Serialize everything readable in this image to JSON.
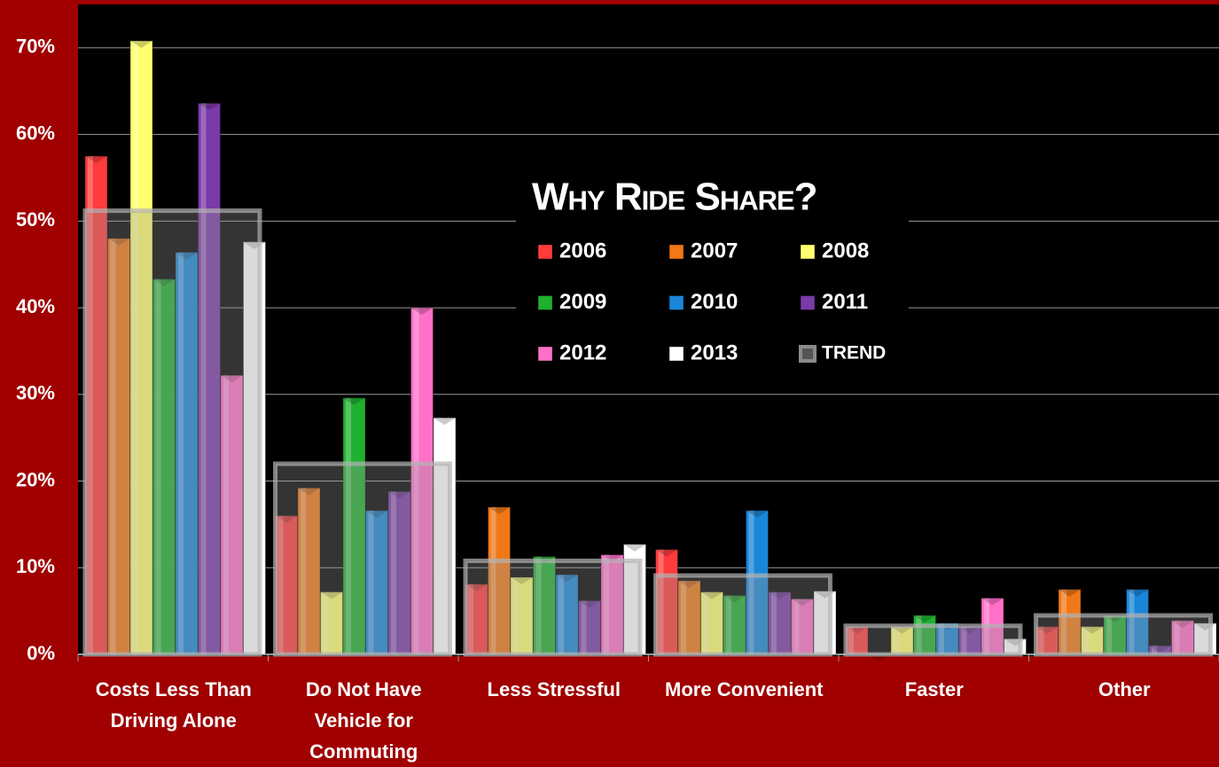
{
  "chart_data": {
    "type": "bar",
    "title": "Why Ride Share?",
    "categories": [
      "Costs Less Than Driving Alone",
      "Do Not Have Vehicle for Commuting",
      "Less Stressful",
      "More Convenient",
      "Faster",
      "Other"
    ],
    "series": [
      {
        "name": "2006",
        "color": "#ff3b3b",
        "values": [
          57.5,
          16,
          8.1,
          12.1,
          3.2,
          3.2
        ]
      },
      {
        "name": "2007",
        "color": "#f07818",
        "values": [
          48,
          19.2,
          17,
          8.5,
          0,
          7.5
        ]
      },
      {
        "name": "2008",
        "color": "#ffff70",
        "values": [
          70.8,
          7.2,
          8.9,
          7.2,
          3.2,
          3.2
        ]
      },
      {
        "name": "2009",
        "color": "#20b030",
        "values": [
          43.3,
          29.6,
          11.3,
          6.8,
          4.5,
          4.5
        ]
      },
      {
        "name": "2010",
        "color": "#1a86d8",
        "values": [
          46.4,
          16.6,
          9.2,
          16.6,
          3.6,
          7.5
        ]
      },
      {
        "name": "2011",
        "color": "#7a3aa8",
        "values": [
          63.6,
          18.8,
          6.2,
          7.2,
          3.2,
          1.0
        ]
      },
      {
        "name": "2012",
        "color": "#ff70c8",
        "values": [
          32.2,
          40,
          11.5,
          6.4,
          6.5,
          3.9
        ]
      },
      {
        "name": "2013",
        "color": "#ffffff",
        "values": [
          47.6,
          27.3,
          12.7,
          7.3,
          1.8,
          3.6
        ]
      }
    ],
    "trend": {
      "name": "TREND",
      "color": "#8a8a8a",
      "values": [
        51.2,
        22,
        10.8,
        9.1,
        3.3,
        4.5
      ]
    },
    "ylim": [
      0,
      75
    ],
    "yticks": [
      {
        "value": 0,
        "label": "0%"
      },
      {
        "value": 10,
        "label": "10%"
      },
      {
        "value": 20,
        "label": "20%"
      },
      {
        "value": 30,
        "label": "30%"
      },
      {
        "value": 40,
        "label": "40%"
      },
      {
        "value": 50,
        "label": "50%"
      },
      {
        "value": 60,
        "label": "60%"
      },
      {
        "value": 70,
        "label": "70%"
      }
    ],
    "grid": true
  }
}
